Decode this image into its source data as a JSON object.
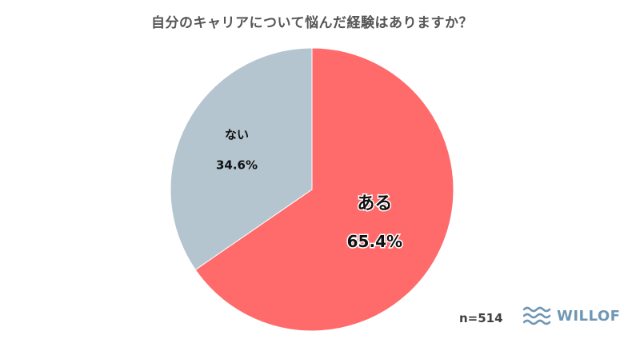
{
  "chart_data": {
    "type": "pie",
    "title": "自分のキャリアについて悩んだ経験はありますか？",
    "slices": [
      {
        "label": "ある",
        "value": 65.4,
        "value_label": "65.4%",
        "color": "#ff6b6b"
      },
      {
        "label": "ない",
        "value": 34.6,
        "value_label": "34.6%",
        "color": "#b4c5d0"
      }
    ],
    "start_angle": "12 o'clock",
    "direction": "clockwise"
  },
  "footer": {
    "sample_size": "n=514",
    "logo_text": "WILLOF",
    "logo_color": "#6f96b4"
  }
}
